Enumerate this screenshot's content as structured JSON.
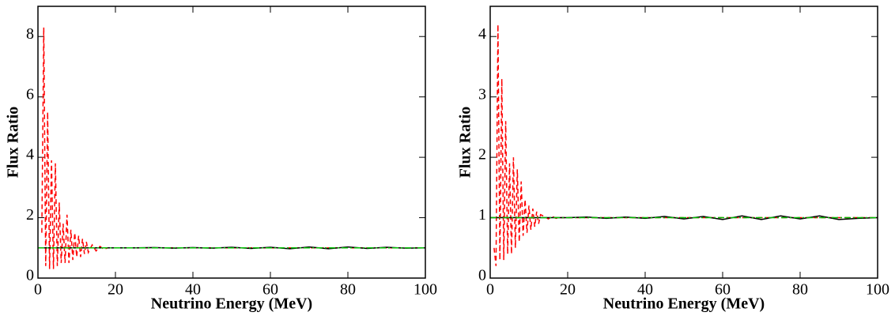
{
  "chart_data": [
    {
      "type": "line",
      "xlabel": "Neutrino Energy  (MeV)",
      "ylabel": "Flux Ratio",
      "xlim": [
        0,
        100
      ],
      "ylim": [
        0,
        9
      ],
      "xticks": [
        0,
        20,
        40,
        60,
        80,
        100
      ],
      "yticks": [
        0,
        2,
        4,
        6,
        8
      ],
      "series": [
        {
          "color": "#ff0000",
          "dash": "6,4",
          "x": [
            1,
            1.5,
            2,
            2.5,
            3,
            3.5,
            4,
            4.5,
            5,
            5.5,
            6,
            6.5,
            7,
            7.5,
            8,
            8.5,
            9,
            9.5,
            10,
            10.5,
            11,
            11.5,
            12,
            12.5,
            13,
            14,
            15,
            16,
            17,
            18,
            20,
            30,
            40,
            50,
            60,
            70,
            80,
            90,
            100
          ],
          "values": [
            1.5,
            8.3,
            0.4,
            5.5,
            0.3,
            3.9,
            0.3,
            3.8,
            0.4,
            2.5,
            0.5,
            1.8,
            0.5,
            2.1,
            0.5,
            1.6,
            0.6,
            1.5,
            0.7,
            1.4,
            0.7,
            1.3,
            0.8,
            1.2,
            0.85,
            1.1,
            0.9,
            1.05,
            0.95,
            1.0,
            1.0,
            1.0,
            1.0,
            1.0,
            1.0,
            1.0,
            1.0,
            1.0,
            1.0
          ]
        },
        {
          "color": "#000000",
          "dash": "none",
          "x": [
            0,
            5,
            10,
            15,
            20,
            25,
            30,
            35,
            40,
            45,
            50,
            55,
            60,
            65,
            70,
            75,
            80,
            85,
            90,
            95,
            100
          ],
          "values": [
            1,
            1,
            1,
            1,
            1,
            1,
            1.01,
            0.99,
            1.01,
            0.99,
            1.02,
            0.98,
            1.02,
            0.97,
            1.03,
            0.97,
            1.03,
            0.98,
            1.02,
            0.99,
            1
          ]
        },
        {
          "color": "#00bb00",
          "dash": "8,3,2,3",
          "x": [
            0,
            10,
            20,
            30,
            40,
            50,
            60,
            70,
            80,
            90,
            100
          ],
          "values": [
            1,
            1,
            1,
            1,
            1,
            1,
            1,
            1,
            1,
            1,
            1
          ]
        }
      ]
    },
    {
      "type": "line",
      "xlabel": "Neutrino Energy  (MeV)",
      "ylabel": "Flux Ratio",
      "xlim": [
        0,
        100
      ],
      "ylim": [
        0,
        4.5
      ],
      "xticks": [
        0,
        20,
        40,
        60,
        80,
        100
      ],
      "yticks": [
        0,
        1,
        2,
        3,
        4
      ],
      "series": [
        {
          "color": "#ff0000",
          "dash": "6,4",
          "x": [
            1,
            1.5,
            2,
            2.5,
            3,
            3.5,
            4,
            4.5,
            5,
            5.5,
            6,
            6.5,
            7,
            7.5,
            8,
            8.5,
            9,
            9.5,
            10,
            10.5,
            11,
            11.5,
            12,
            12.5,
            13,
            14,
            15,
            16,
            17,
            18,
            20,
            30,
            40,
            50,
            60,
            70,
            80,
            90,
            100
          ],
          "values": [
            0.5,
            0.2,
            4.2,
            0.3,
            3.3,
            0.3,
            2.6,
            0.4,
            1.9,
            0.4,
            2.0,
            0.5,
            1.8,
            0.6,
            1.6,
            0.7,
            1.3,
            0.75,
            1.2,
            0.8,
            1.15,
            0.85,
            1.1,
            0.9,
            1.05,
            1.02,
            0.98,
            1.02,
            0.99,
            1.0,
            1.0,
            1.0,
            1.0,
            1.0,
            1.0,
            1.0,
            1.0,
            1.0,
            1.0
          ]
        },
        {
          "color": "#000000",
          "dash": "none",
          "x": [
            0,
            5,
            10,
            15,
            20,
            25,
            30,
            35,
            40,
            45,
            50,
            55,
            60,
            65,
            70,
            75,
            80,
            85,
            90,
            95,
            100
          ],
          "values": [
            1,
            1,
            1,
            1,
            1,
            1.01,
            0.99,
            1.01,
            0.99,
            1.02,
            0.98,
            1.02,
            0.97,
            1.03,
            0.97,
            1.03,
            0.98,
            1.03,
            0.97,
            0.99,
            1
          ]
        },
        {
          "color": "#00bb00",
          "dash": "8,3,2,3",
          "x": [
            0,
            10,
            20,
            30,
            40,
            50,
            60,
            70,
            80,
            90,
            100
          ],
          "values": [
            1,
            1,
            1,
            1,
            1,
            1,
            1,
            1,
            1,
            1,
            1
          ]
        }
      ]
    }
  ]
}
